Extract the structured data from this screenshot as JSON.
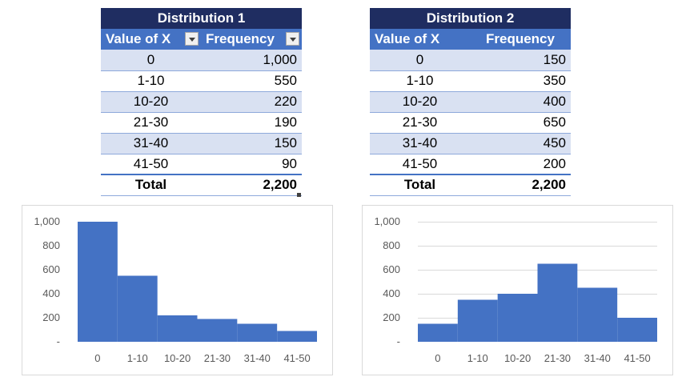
{
  "tables": [
    {
      "title": "Distribution 1",
      "headers": [
        "Value of X",
        "Frequency"
      ],
      "rows": [
        {
          "x": "0",
          "f": "1,000"
        },
        {
          "x": "1-10",
          "f": "550"
        },
        {
          "x": "10-20",
          "f": "220"
        },
        {
          "x": "21-30",
          "f": "190"
        },
        {
          "x": "31-40",
          "f": "150"
        },
        {
          "x": "41-50",
          "f": "90"
        }
      ],
      "total_label": "Total",
      "total_value": "2,200"
    },
    {
      "title": "Distribution 2",
      "headers": [
        "Value of X",
        "Frequency"
      ],
      "rows": [
        {
          "x": "0",
          "f": "150"
        },
        {
          "x": "1-10",
          "f": "350"
        },
        {
          "x": "10-20",
          "f": "400"
        },
        {
          "x": "21-30",
          "f": "650"
        },
        {
          "x": "31-40",
          "f": "450"
        },
        {
          "x": "41-50",
          "f": "200"
        }
      ],
      "total_label": "Total",
      "total_value": "2,200"
    }
  ],
  "colors": {
    "bar": "#4472c4",
    "header": "#4472c4",
    "title": "#1f2d61",
    "band": "#d9e1f2",
    "grid": "#d9d9d9",
    "axis_text": "#595959"
  },
  "chart_data": [
    {
      "type": "bar",
      "categories": [
        "0",
        "1-10",
        "10-20",
        "21-30",
        "31-40",
        "41-50"
      ],
      "values": [
        1000,
        550,
        220,
        190,
        150,
        90
      ],
      "ylim": [
        0,
        1000
      ],
      "yticks": [
        0,
        200,
        400,
        600,
        800,
        1000
      ],
      "ytick_labels": [
        "-",
        "200",
        "400",
        "600",
        "800",
        "1,000"
      ],
      "grid": false,
      "legend": "none"
    },
    {
      "type": "bar",
      "categories": [
        "0",
        "1-10",
        "10-20",
        "21-30",
        "31-40",
        "41-50"
      ],
      "values": [
        150,
        350,
        400,
        650,
        450,
        200
      ],
      "ylim": [
        0,
        1000
      ],
      "yticks": [
        0,
        200,
        400,
        600,
        800,
        1000
      ],
      "ytick_labels": [
        "-",
        "200",
        "400",
        "600",
        "800",
        "1,000"
      ],
      "grid": true,
      "legend": "none"
    }
  ]
}
